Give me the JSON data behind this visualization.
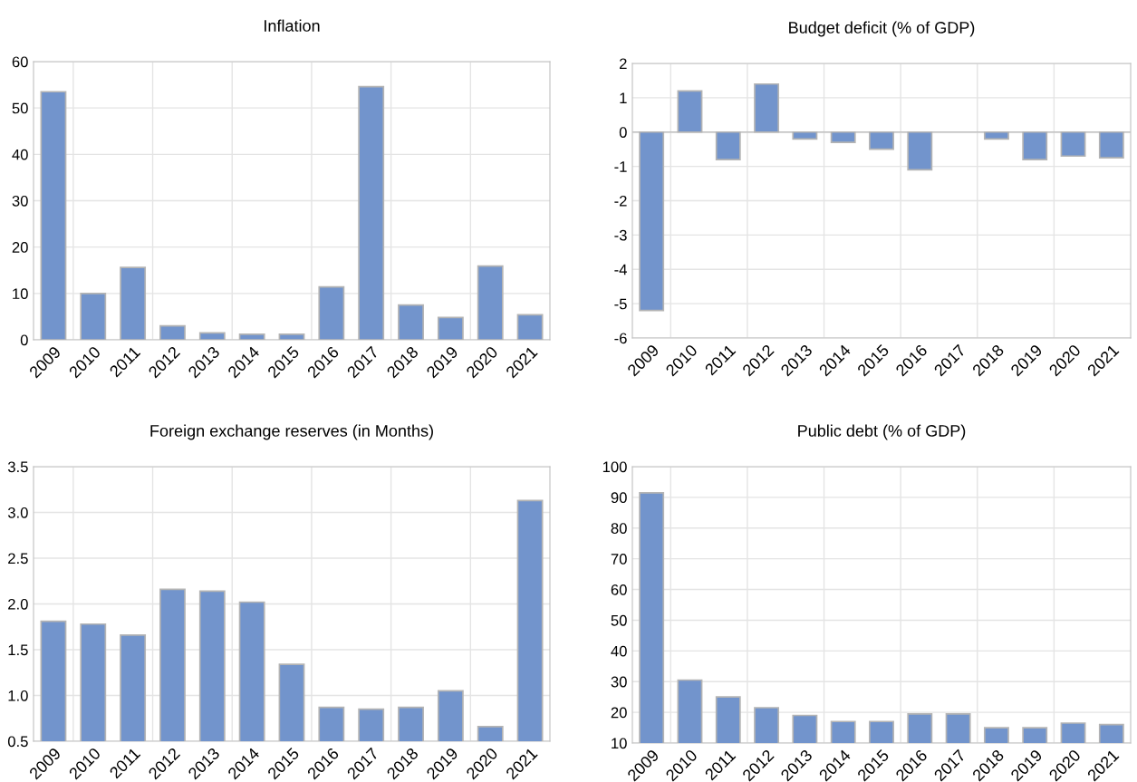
{
  "chart_data": [
    {
      "type": "bar",
      "title": "Inflation",
      "categories": [
        "2009",
        "2010",
        "2011",
        "2012",
        "2013",
        "2014",
        "2015",
        "2016",
        "2017",
        "2018",
        "2019",
        "2020",
        "2021"
      ],
      "color": "#7294cc",
      "values": [
        53.5,
        10,
        15.6,
        3,
        1.5,
        1.2,
        1.2,
        11.4,
        54.6,
        7.5,
        4.8,
        15.9,
        5.4
      ],
      "ylim": [
        0,
        60
      ],
      "yticks": [
        0,
        10,
        20,
        30,
        40,
        50,
        60
      ],
      "grid": true
    },
    {
      "type": "bar",
      "title": "Budget deficit (% of GDP)",
      "categories": [
        "2009",
        "2010",
        "2011",
        "2012",
        "2013",
        "2014",
        "2015",
        "2016",
        "2017",
        "2018",
        "2019",
        "2020",
        "2021"
      ],
      "color": "#7294cc",
      "values": [
        -5.2,
        1.2,
        -0.8,
        1.4,
        -0.2,
        -0.3,
        -0.5,
        -1.1,
        null,
        -0.2,
        -0.8,
        -0.7,
        -0.75
      ],
      "ylim": [
        -6,
        2
      ],
      "yticks": [
        -6,
        -5,
        -4,
        -3,
        -2,
        -1,
        0,
        1,
        2
      ],
      "grid": true
    },
    {
      "type": "bar",
      "title": "Foreign exchange reserves (in Months)",
      "categories": [
        "2009",
        "2010",
        "2011",
        "2012",
        "2013",
        "2014",
        "2015",
        "2016",
        "2017",
        "2018",
        "2019",
        "2020",
        "2021"
      ],
      "color": "#7294cc",
      "values": [
        1.81,
        1.78,
        1.66,
        2.16,
        2.14,
        2.02,
        1.34,
        0.87,
        0.85,
        0.87,
        1.05,
        0.66,
        3.13
      ],
      "ylim": [
        0.5,
        3.5
      ],
      "yticks": [
        0.5,
        {
          "value": 1,
          "label": "1.0"
        },
        1.5,
        {
          "value": 2,
          "label": "2.0"
        },
        2.5,
        {
          "value": 3,
          "label": "3.0"
        },
        3.5
      ],
      "grid": true
    },
    {
      "type": "bar",
      "title": "Public debt (% of GDP)",
      "categories": [
        "2009",
        "2010",
        "2011",
        "2012",
        "2013",
        "2014",
        "2015",
        "2016",
        "2017",
        "2018",
        "2019",
        "2020",
        "2021"
      ],
      "color": "#7294cc",
      "values": [
        91.5,
        30.5,
        25,
        21.5,
        19,
        17,
        17,
        19.5,
        19.5,
        15,
        15,
        16.5,
        16
      ],
      "ylim": [
        10,
        100
      ],
      "yticks": [
        10,
        20,
        30,
        40,
        50,
        60,
        70,
        80,
        90,
        100
      ],
      "grid": true
    }
  ]
}
